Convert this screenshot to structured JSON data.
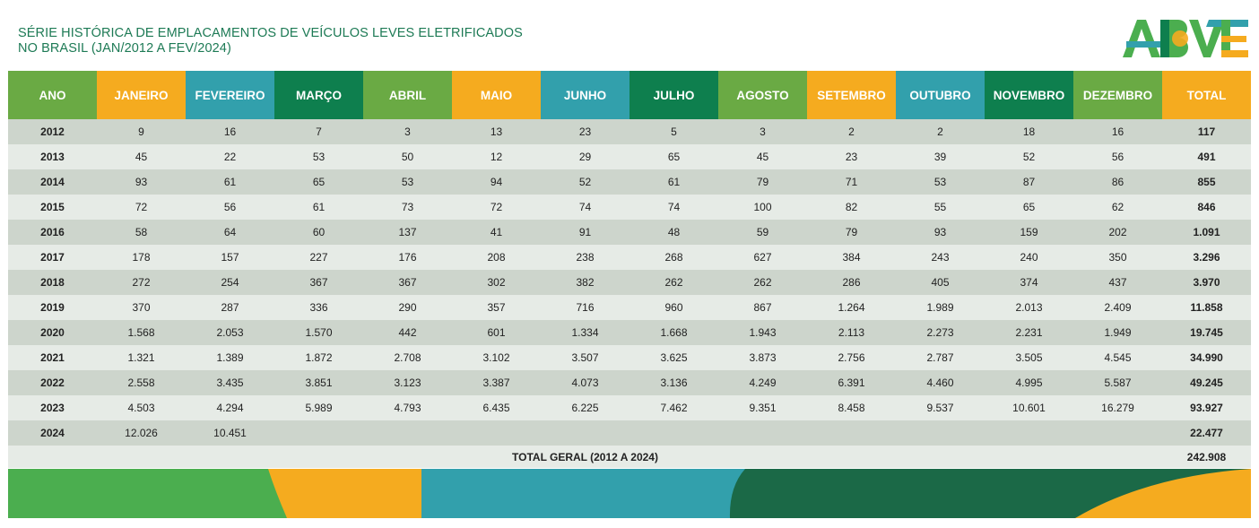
{
  "header": {
    "title_line1": "SÉRIE HISTÓRICA DE EMPLACAMENTOS DE VEÍCULOS LEVES ELETRIFICADOS",
    "title_line2": "NO BRASIL (JAN/2012 A FEV/2024)",
    "logo_text": "ABVE"
  },
  "colors": {
    "green": "#6aaa44",
    "orange": "#f5ab1f",
    "teal": "#32a0ac",
    "dark_green": "#0e7f4e"
  },
  "table": {
    "columns": [
      {
        "label": "ANO",
        "color": "#6aaa44"
      },
      {
        "label": "JANEIRO",
        "color": "#f5ab1f"
      },
      {
        "label": "FEVEREIRO",
        "color": "#32a0ac"
      },
      {
        "label": "MARÇO",
        "color": "#0e7f4e"
      },
      {
        "label": "ABRIL",
        "color": "#6aaa44"
      },
      {
        "label": "MAIO",
        "color": "#f5ab1f"
      },
      {
        "label": "JUNHO",
        "color": "#32a0ac"
      },
      {
        "label": "JULHO",
        "color": "#0e7f4e"
      },
      {
        "label": "AGOSTO",
        "color": "#6aaa44"
      },
      {
        "label": "SETEMBRO",
        "color": "#f5ab1f"
      },
      {
        "label": "OUTUBRO",
        "color": "#32a0ac"
      },
      {
        "label": "NOVEMBRO",
        "color": "#0e7f4e"
      },
      {
        "label": "DEZEMBRO",
        "color": "#6aaa44"
      },
      {
        "label": "TOTAL",
        "color": "#f5ab1f"
      }
    ],
    "rows": [
      [
        "2012",
        "9",
        "16",
        "7",
        "3",
        "13",
        "23",
        "5",
        "3",
        "2",
        "2",
        "18",
        "16",
        "117"
      ],
      [
        "2013",
        "45",
        "22",
        "53",
        "50",
        "12",
        "29",
        "65",
        "45",
        "23",
        "39",
        "52",
        "56",
        "491"
      ],
      [
        "2014",
        "93",
        "61",
        "65",
        "53",
        "94",
        "52",
        "61",
        "79",
        "71",
        "53",
        "87",
        "86",
        "855"
      ],
      [
        "2015",
        "72",
        "56",
        "61",
        "73",
        "72",
        "74",
        "74",
        "100",
        "82",
        "55",
        "65",
        "62",
        "846"
      ],
      [
        "2016",
        "58",
        "64",
        "60",
        "137",
        "41",
        "91",
        "48",
        "59",
        "79",
        "93",
        "159",
        "202",
        "1.091"
      ],
      [
        "2017",
        "178",
        "157",
        "227",
        "176",
        "208",
        "238",
        "268",
        "627",
        "384",
        "243",
        "240",
        "350",
        "3.296"
      ],
      [
        "2018",
        "272",
        "254",
        "367",
        "367",
        "302",
        "382",
        "262",
        "262",
        "286",
        "405",
        "374",
        "437",
        "3.970"
      ],
      [
        "2019",
        "370",
        "287",
        "336",
        "290",
        "357",
        "716",
        "960",
        "867",
        "1.264",
        "1.989",
        "2.013",
        "2.409",
        "11.858"
      ],
      [
        "2020",
        "1.568",
        "2.053",
        "1.570",
        "442",
        "601",
        "1.334",
        "1.668",
        "1.943",
        "2.113",
        "2.273",
        "2.231",
        "1.949",
        "19.745"
      ],
      [
        "2021",
        "1.321",
        "1.389",
        "1.872",
        "2.708",
        "3.102",
        "3.507",
        "3.625",
        "3.873",
        "2.756",
        "2.787",
        "3.505",
        "4.545",
        "34.990"
      ],
      [
        "2022",
        "2.558",
        "3.435",
        "3.851",
        "3.123",
        "3.387",
        "4.073",
        "3.136",
        "4.249",
        "6.391",
        "4.460",
        "4.995",
        "5.587",
        "49.245"
      ],
      [
        "2023",
        "4.503",
        "4.294",
        "5.989",
        "4.793",
        "6.435",
        "6.225",
        "7.462",
        "9.351",
        "8.458",
        "9.537",
        "10.601",
        "16.279",
        "93.927"
      ],
      [
        "2024",
        "12.026",
        "10.451",
        "",
        "",
        "",
        "",
        "",
        "",
        "",
        "",
        "",
        "",
        "22.477"
      ]
    ],
    "grand_total_label": "TOTAL GERAL (2012 A 2024)",
    "grand_total_value": "242.908"
  }
}
